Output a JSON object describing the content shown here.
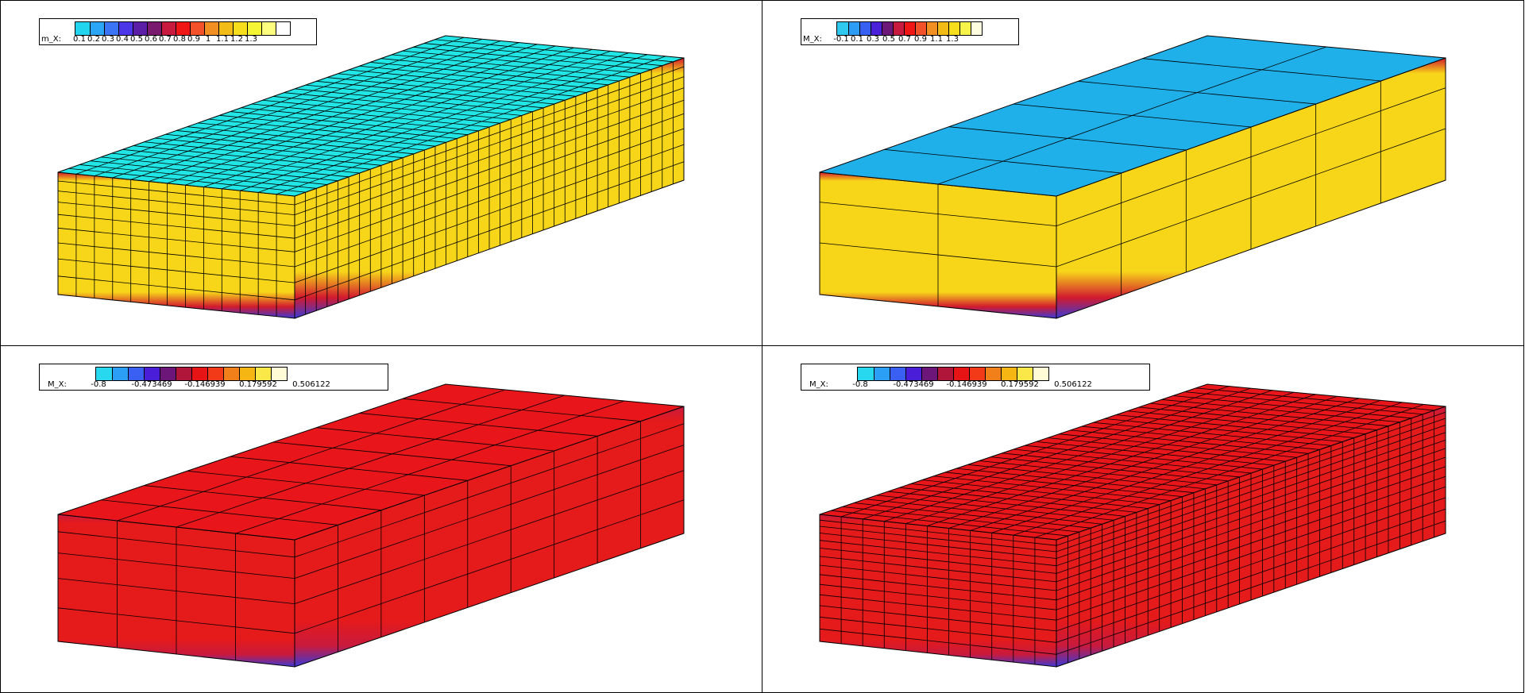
{
  "panels": [
    {
      "legend": {
        "label": "m_X:",
        "ticks": [
          "0.1",
          "0.2",
          "0.3",
          "0.4",
          "0.5",
          "0.6",
          "0.7",
          "0.8",
          "0.9",
          "1",
          "1.1",
          "1.2",
          "1.3"
        ],
        "colors": [
          "#23d4ee",
          "#2ba5f5",
          "#3b74f4",
          "#4b36e8",
          "#5a1fa6",
          "#7a1a6e",
          "#c81a3e",
          "#f01616",
          "#f2512a",
          "#f28f22",
          "#f2bb15",
          "#f6de1c",
          "#f5f535",
          "#fdfd7e",
          "#ffffff"
        ]
      },
      "box": {
        "top_color": "#22e6e6",
        "side_color": "#f7d619",
        "mesh": "fine",
        "bottom_band": "#d21a2e"
      }
    },
    {
      "legend": {
        "label": "M_X:",
        "ticks": [
          "-0.1",
          "0.1",
          "0.3",
          "0.5",
          "0.7",
          "0.9",
          "1.1",
          "1.3"
        ],
        "colors": [
          "#2fc9ef",
          "#2c9cf5",
          "#3760f2",
          "#4a21d9",
          "#6b1879",
          "#c81a3e",
          "#f01616",
          "#f2512a",
          "#f28f22",
          "#f2bb15",
          "#f6de1c",
          "#f8f34a",
          "#fffde0"
        ]
      },
      "box": {
        "top_color": "#1fb0ea",
        "side_color": "#f7d619",
        "mesh": "coarse",
        "bottom_band": "#d21a2e"
      }
    },
    {
      "legend": {
        "label": "M_X:",
        "ticks": [
          "-0.8",
          "-0.473469",
          "-0.146939",
          "0.179592",
          "0.506122"
        ],
        "colors": [
          "#28d8ee",
          "#2b9ff5",
          "#3a60f3",
          "#4a1ed8",
          "#6d167a",
          "#b0153a",
          "#e61414",
          "#f23a18",
          "#f2801a",
          "#f5b614",
          "#fae848",
          "#fffbd6"
        ]
      },
      "box": {
        "top_color": "#e8161a",
        "side_color": "#e51a1a",
        "mesh": "coarse",
        "bottom_band": "#c81a3e"
      }
    },
    {
      "legend": {
        "label": "M_X:",
        "ticks": [
          "-0.8",
          "-0.473469",
          "-0.146939",
          "0.179592",
          "0.506122"
        ],
        "colors": [
          "#28d8ee",
          "#2b9ff5",
          "#3a60f3",
          "#4a1ed8",
          "#6d167a",
          "#b0153a",
          "#e61414",
          "#f23a18",
          "#f2801a",
          "#f5b614",
          "#fae848",
          "#fffbd6"
        ]
      },
      "box": {
        "top_color": "#e8161a",
        "side_color": "#e51a1a",
        "mesh": "fine",
        "bottom_band": "#c81a3e"
      }
    }
  ]
}
